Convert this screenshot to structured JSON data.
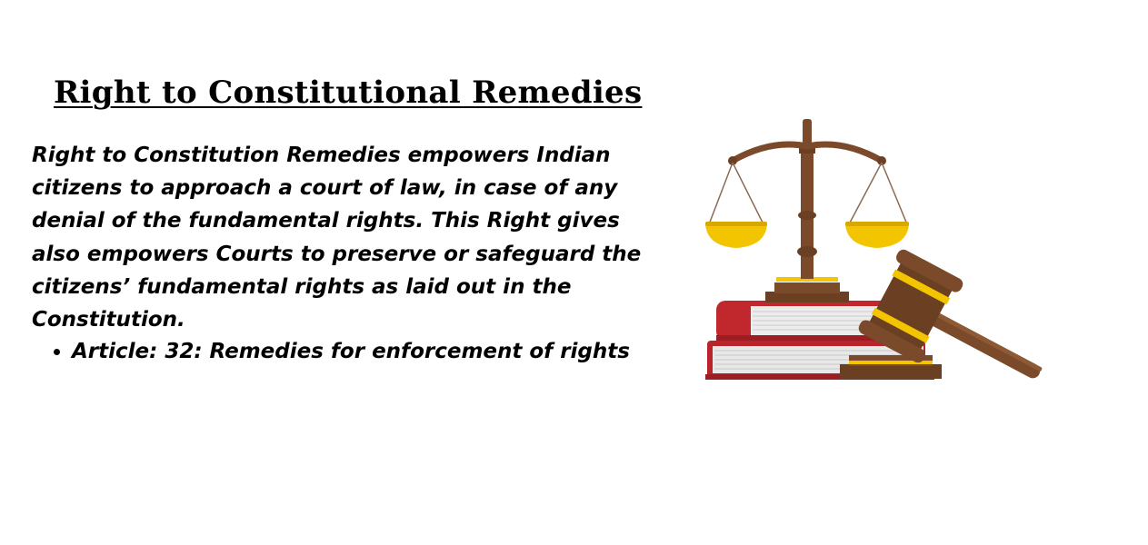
{
  "title": "Right to Constitutional Remedies",
  "description": "Right to Constitution Remedies empowers Indian citizens to approach a court of law, in case of any denial of the fundamental rights. This Right gives also empowers Courts to preserve or safeguard the citizens’ fundamental rights as laid out in the Constitution.",
  "bullets": [
    "Article: 32: Remedies for enforcement of rights"
  ],
  "illustration": {
    "icons": [
      "scales-of-justice-icon",
      "law-books-icon",
      "gavel-icon"
    ],
    "colors": {
      "wood": "#7a4a2a",
      "wood_dark": "#5c341d",
      "gold": "#f2c500",
      "book_red": "#c0282d",
      "pages": "#e9e9e9"
    }
  }
}
